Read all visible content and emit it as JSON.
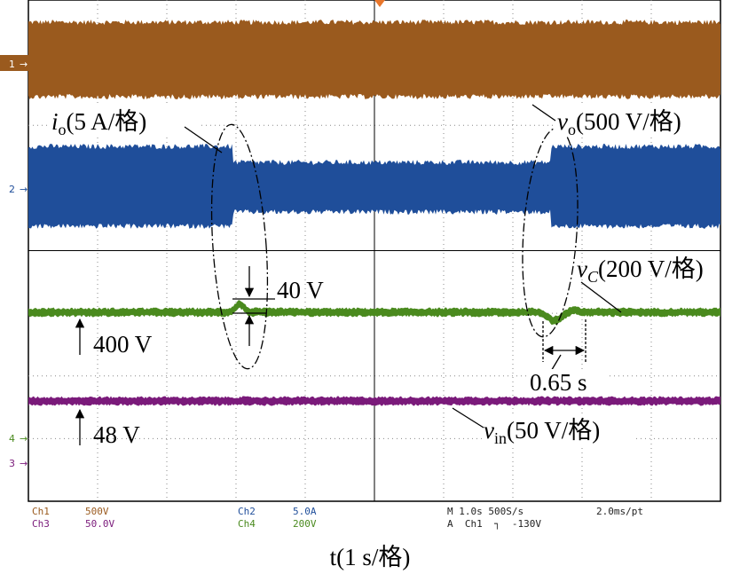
{
  "channel_markers": [
    "1",
    "2",
    "4",
    "3"
  ],
  "annotations": {
    "io": {
      "symbol": "i",
      "subscript": "o",
      "scale": "(5 A/格)"
    },
    "vo": {
      "symbol": "v",
      "subscript": "o",
      "scale": "(500 V/格)"
    },
    "vc": {
      "symbol": "v",
      "subscript": "C",
      "scale": "(200 V/格)"
    },
    "vin": {
      "symbol": "v",
      "subscript": "in",
      "scale": "(50 V/格)"
    },
    "dip": "40 V",
    "vc_level": "400 V",
    "vin_level": "48 V",
    "recovery": "0.65 s"
  },
  "readout": {
    "ch1": {
      "name": "Ch1",
      "scale": "500V"
    },
    "ch3": {
      "name": "Ch3",
      "scale": "50.0V"
    },
    "ch2": {
      "name": "Ch2",
      "scale": "5.0A"
    },
    "ch4": {
      "name": "Ch4",
      "scale": "200V"
    },
    "timebase": "M 1.0s 500S/s",
    "record": "2.0ms/pt",
    "trigger": "A  Ch1  ┐  -130V"
  },
  "x_axis_label": "t(1 s/格)"
}
